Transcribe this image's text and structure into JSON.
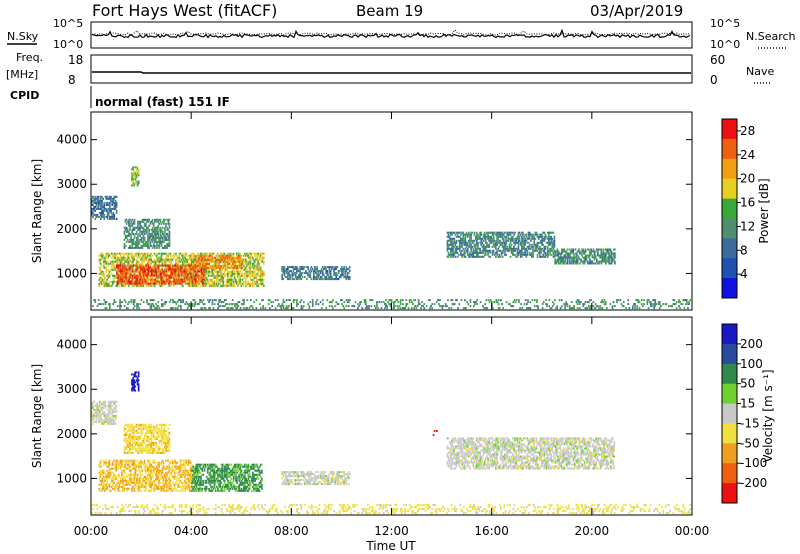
{
  "header": {
    "station": "Fort Hays West (fitACF)",
    "beam": "Beam 19",
    "date": "03/Apr/2019"
  },
  "housekeeping": {
    "nsky_label": "N.Sky",
    "nsearch_label": "N.Search",
    "noise_ticks": [
      "10^5",
      "10^0"
    ],
    "freq_label": "Freq.",
    "freq_unit": "[MHz]",
    "freq_ticks": [
      "18",
      "8"
    ],
    "nave_label": "Nave",
    "nave_ticks": [
      "60",
      "0"
    ],
    "cpid_label": "CPID",
    "cpid_value": "normal (fast) 151 IF"
  },
  "colors": {
    "power_scale": [
      "#1010e0",
      "#2050b0",
      "#3a6b9c",
      "#4f8f6f",
      "#38a838",
      "#e8d020",
      "#f0a010",
      "#ee6010",
      "#ee1010"
    ],
    "velocity_scale": [
      "#1818c8",
      "#2a4aa0",
      "#2f8a4a",
      "#70d030",
      "#c8c8c8",
      "#f0e040",
      "#f0a020",
      "#ee6010",
      "#ee1010"
    ]
  },
  "chart_data": [
    {
      "type": "heatmap",
      "panel": "power",
      "title": "",
      "xlabel": "Time UT",
      "ylabel": "Slant Range [km]",
      "x_ticks": [
        "00:00",
        "04:00",
        "08:00",
        "12:00",
        "16:00",
        "20:00",
        "00:00"
      ],
      "xlim_hours": [
        0,
        24
      ],
      "y_ticks": [
        1000,
        2000,
        3000,
        4000
      ],
      "ylim_km": [
        180,
        4620
      ],
      "colorbar": {
        "label": "Power [dB]",
        "ticks": [
          4,
          8,
          12,
          16,
          20,
          24,
          28
        ],
        "range": [
          0,
          30
        ]
      },
      "echo_regions": [
        {
          "t0": 0.3,
          "t1": 6.9,
          "r0": 700,
          "r1": 1450,
          "level": 18
        },
        {
          "t0": 1.0,
          "t1": 4.5,
          "r0": 750,
          "r1": 1200,
          "level": 27
        },
        {
          "t0": 4.1,
          "t1": 6.0,
          "r0": 1100,
          "r1": 1400,
          "level": 24
        },
        {
          "t0": 1.3,
          "t1": 3.1,
          "r0": 1550,
          "r1": 2200,
          "level": 11
        },
        {
          "t0": 0.0,
          "t1": 1.0,
          "r0": 2200,
          "r1": 2700,
          "level": 8
        },
        {
          "t0": 1.6,
          "t1": 1.9,
          "r0": 2950,
          "r1": 3400,
          "level": 16
        },
        {
          "t0": 7.6,
          "t1": 10.3,
          "r0": 850,
          "r1": 1150,
          "level": 9
        },
        {
          "t0": 14.2,
          "t1": 18.5,
          "r0": 1350,
          "r1": 1900,
          "level": 10
        },
        {
          "t0": 18.5,
          "t1": 20.9,
          "r0": 1200,
          "r1": 1550,
          "level": 11
        },
        {
          "t0": 0.0,
          "t1": 23.9,
          "r0": 200,
          "r1": 420,
          "level": 12
        }
      ]
    },
    {
      "type": "heatmap",
      "panel": "velocity",
      "title": "",
      "xlabel": "Time UT",
      "ylabel": "Slant Range [km]",
      "x_ticks": [
        "00:00",
        "04:00",
        "08:00",
        "12:00",
        "16:00",
        "20:00",
        "00:00"
      ],
      "xlim_hours": [
        0,
        24
      ],
      "y_ticks": [
        1000,
        2000,
        3000,
        4000
      ],
      "ylim_km": [
        180,
        4620
      ],
      "colorbar": {
        "label": "Velocity [m s⁻¹]",
        "ticks": [
          200,
          100,
          50,
          15,
          -15,
          -50,
          -100,
          -200
        ]
      },
      "echo_regions": [
        {
          "t0": 0.3,
          "t1": 4.0,
          "r0": 700,
          "r1": 1400,
          "velocity": -50
        },
        {
          "t0": 4.0,
          "t1": 6.8,
          "r0": 700,
          "r1": 1300,
          "velocity": 60
        },
        {
          "t0": 1.3,
          "t1": 3.1,
          "r0": 1550,
          "r1": 2200,
          "velocity": -40
        },
        {
          "t0": 0.0,
          "t1": 1.0,
          "r0": 2200,
          "r1": 2700,
          "velocity": 0
        },
        {
          "t0": 1.6,
          "t1": 1.9,
          "r0": 2950,
          "r1": 3400,
          "velocity": 250
        },
        {
          "t0": 7.6,
          "t1": 10.3,
          "r0": 850,
          "r1": 1150,
          "velocity": 0
        },
        {
          "t0": 14.2,
          "t1": 20.9,
          "r0": 1200,
          "r1": 1900,
          "velocity": 0
        },
        {
          "t0": 13.6,
          "t1": 13.8,
          "r0": 1950,
          "r1": 2050,
          "velocity": -250
        },
        {
          "t0": 0.0,
          "t1": 23.9,
          "r0": 200,
          "r1": 420,
          "velocity": -30
        }
      ]
    }
  ]
}
